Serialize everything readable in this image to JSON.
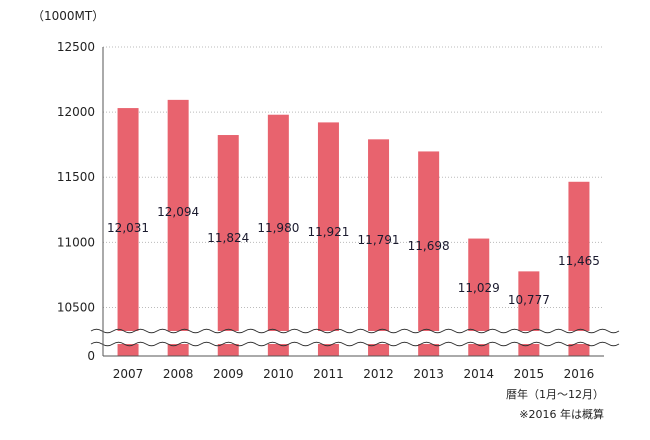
{
  "chart_data": {
    "type": "bar",
    "unit_label": "（1000MT）",
    "categories": [
      "2007",
      "2008",
      "2009",
      "2010",
      "2011",
      "2012",
      "2013",
      "2014",
      "2015",
      "2016"
    ],
    "values": [
      12031,
      12094,
      11824,
      11980,
      11921,
      11791,
      11698,
      11029,
      10777,
      11465
    ],
    "data_labels": [
      "12,031",
      "12,094",
      "11,824",
      "11,980",
      "11,921",
      "11,791",
      "11,698",
      "11,029",
      "10,777",
      "11,465"
    ],
    "ytick_labels": [
      "0",
      "10500",
      "11000",
      "11500",
      "12000",
      "12500"
    ],
    "ytick_values": [
      0,
      10500,
      11000,
      11500,
      12000,
      12500
    ],
    "ylim": [
      10250,
      12500
    ],
    "axis_break": true,
    "grid": true,
    "xlabel": "暦年（1月〜12月）",
    "note": "※2016 年は概算",
    "colors": {
      "bar": "#e8636e",
      "grid": "#bbbbbb",
      "axis": "#555555"
    }
  }
}
